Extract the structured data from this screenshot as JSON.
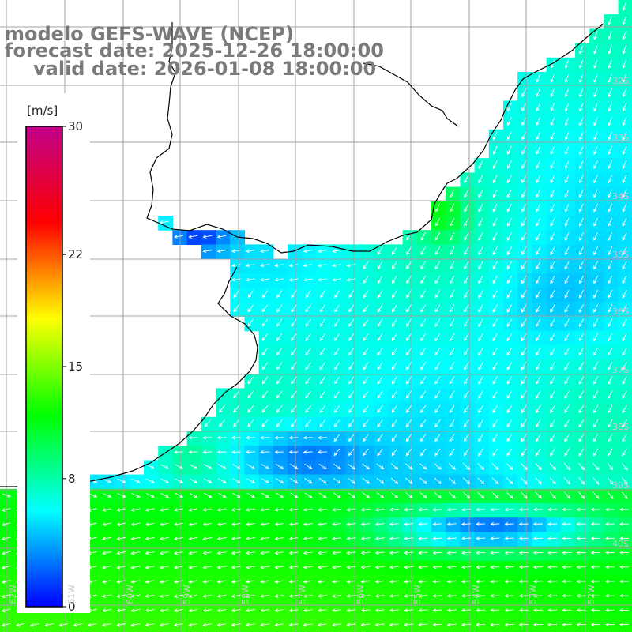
{
  "title": {
    "line1": "modelo GEFS-WAVE (NCEP)",
    "line2": "forecast date: 2025-12-26 18:00:00",
    "line3": "valid date: 2026-01-08 18:00:00"
  },
  "colorbar": {
    "unit": "[m/s]",
    "ticks": [
      "30",
      "22",
      "15",
      "8",
      "0"
    ],
    "tick_values": [
      30,
      22,
      15,
      8,
      0
    ],
    "min": 0,
    "max": 30,
    "colors": [
      "#0000ff",
      "#00ffff",
      "#00ff00",
      "#ffff00",
      "#ff0000",
      "#c0008a"
    ]
  },
  "colors": {
    "land": "#ffffff",
    "coast": "#000000",
    "grid": "#a0a0a0",
    "arrow": "#ffffff",
    "title_text": "#7a7a7a"
  },
  "map": {
    "lat_labels": [
      "32S",
      "33S",
      "34S",
      "35S",
      "36S",
      "37S",
      "38S",
      "39S",
      "40S"
    ],
    "lon_labels": [
      "62W",
      "61W",
      "60W",
      "59W",
      "58W",
      "57W",
      "56W",
      "55W",
      "54W",
      "53W",
      "52W"
    ]
  }
}
